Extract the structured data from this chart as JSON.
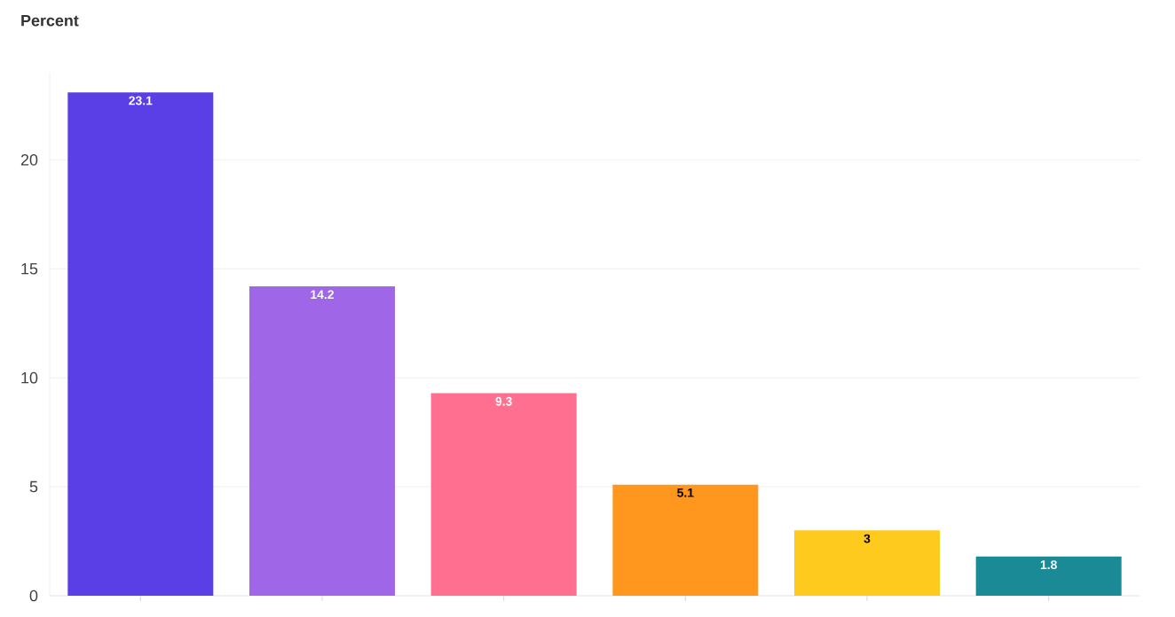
{
  "chart_data": {
    "type": "bar",
    "ylabel": "Percent",
    "categories": [
      null,
      null,
      null,
      null,
      null,
      null
    ],
    "values": [
      23.1,
      14.2,
      9.3,
      5.1,
      3,
      1.8
    ],
    "colors": [
      "#5a3ee6",
      "#a066e8",
      "#ff7090",
      "#ff961e",
      "#ffca1e",
      "#1a8a96"
    ],
    "ylim": [
      0,
      24
    ],
    "yticks": [
      0,
      5,
      10,
      15,
      20
    ],
    "grid": "y",
    "data_labels": true
  }
}
